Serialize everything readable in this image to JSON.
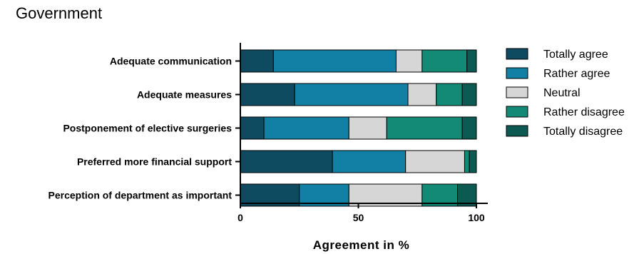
{
  "chart_data": {
    "type": "bar",
    "orientation": "horizontal",
    "stacked": true,
    "title": "Government",
    "xlabel": "Agreement in %",
    "ylabel": "",
    "xlim": [
      0,
      100
    ],
    "xticks": [
      "0",
      "50",
      "100"
    ],
    "grid": false,
    "legend_position": "right",
    "categories": [
      "Adequate communication",
      "Adequate measures",
      "Postponement of elective surgeries",
      "Preferred more financial support",
      "Perception of department as important"
    ],
    "series": [
      {
        "name": "Totally agree",
        "color": "#0e4a60",
        "values": [
          14,
          23,
          10,
          39,
          25
        ]
      },
      {
        "name": "Rather agree",
        "color": "#1180a4",
        "values": [
          52,
          48,
          36,
          31,
          21
        ]
      },
      {
        "name": "Neutral",
        "color": "#d6d6d6",
        "values": [
          11,
          12,
          16,
          25,
          31
        ]
      },
      {
        "name": "Rather disagree",
        "color": "#128a75",
        "values": [
          19,
          11,
          32,
          2,
          15
        ]
      },
      {
        "name": "Totally disagree",
        "color": "#0c5a52",
        "values": [
          4,
          6,
          6,
          3,
          8
        ]
      }
    ]
  }
}
